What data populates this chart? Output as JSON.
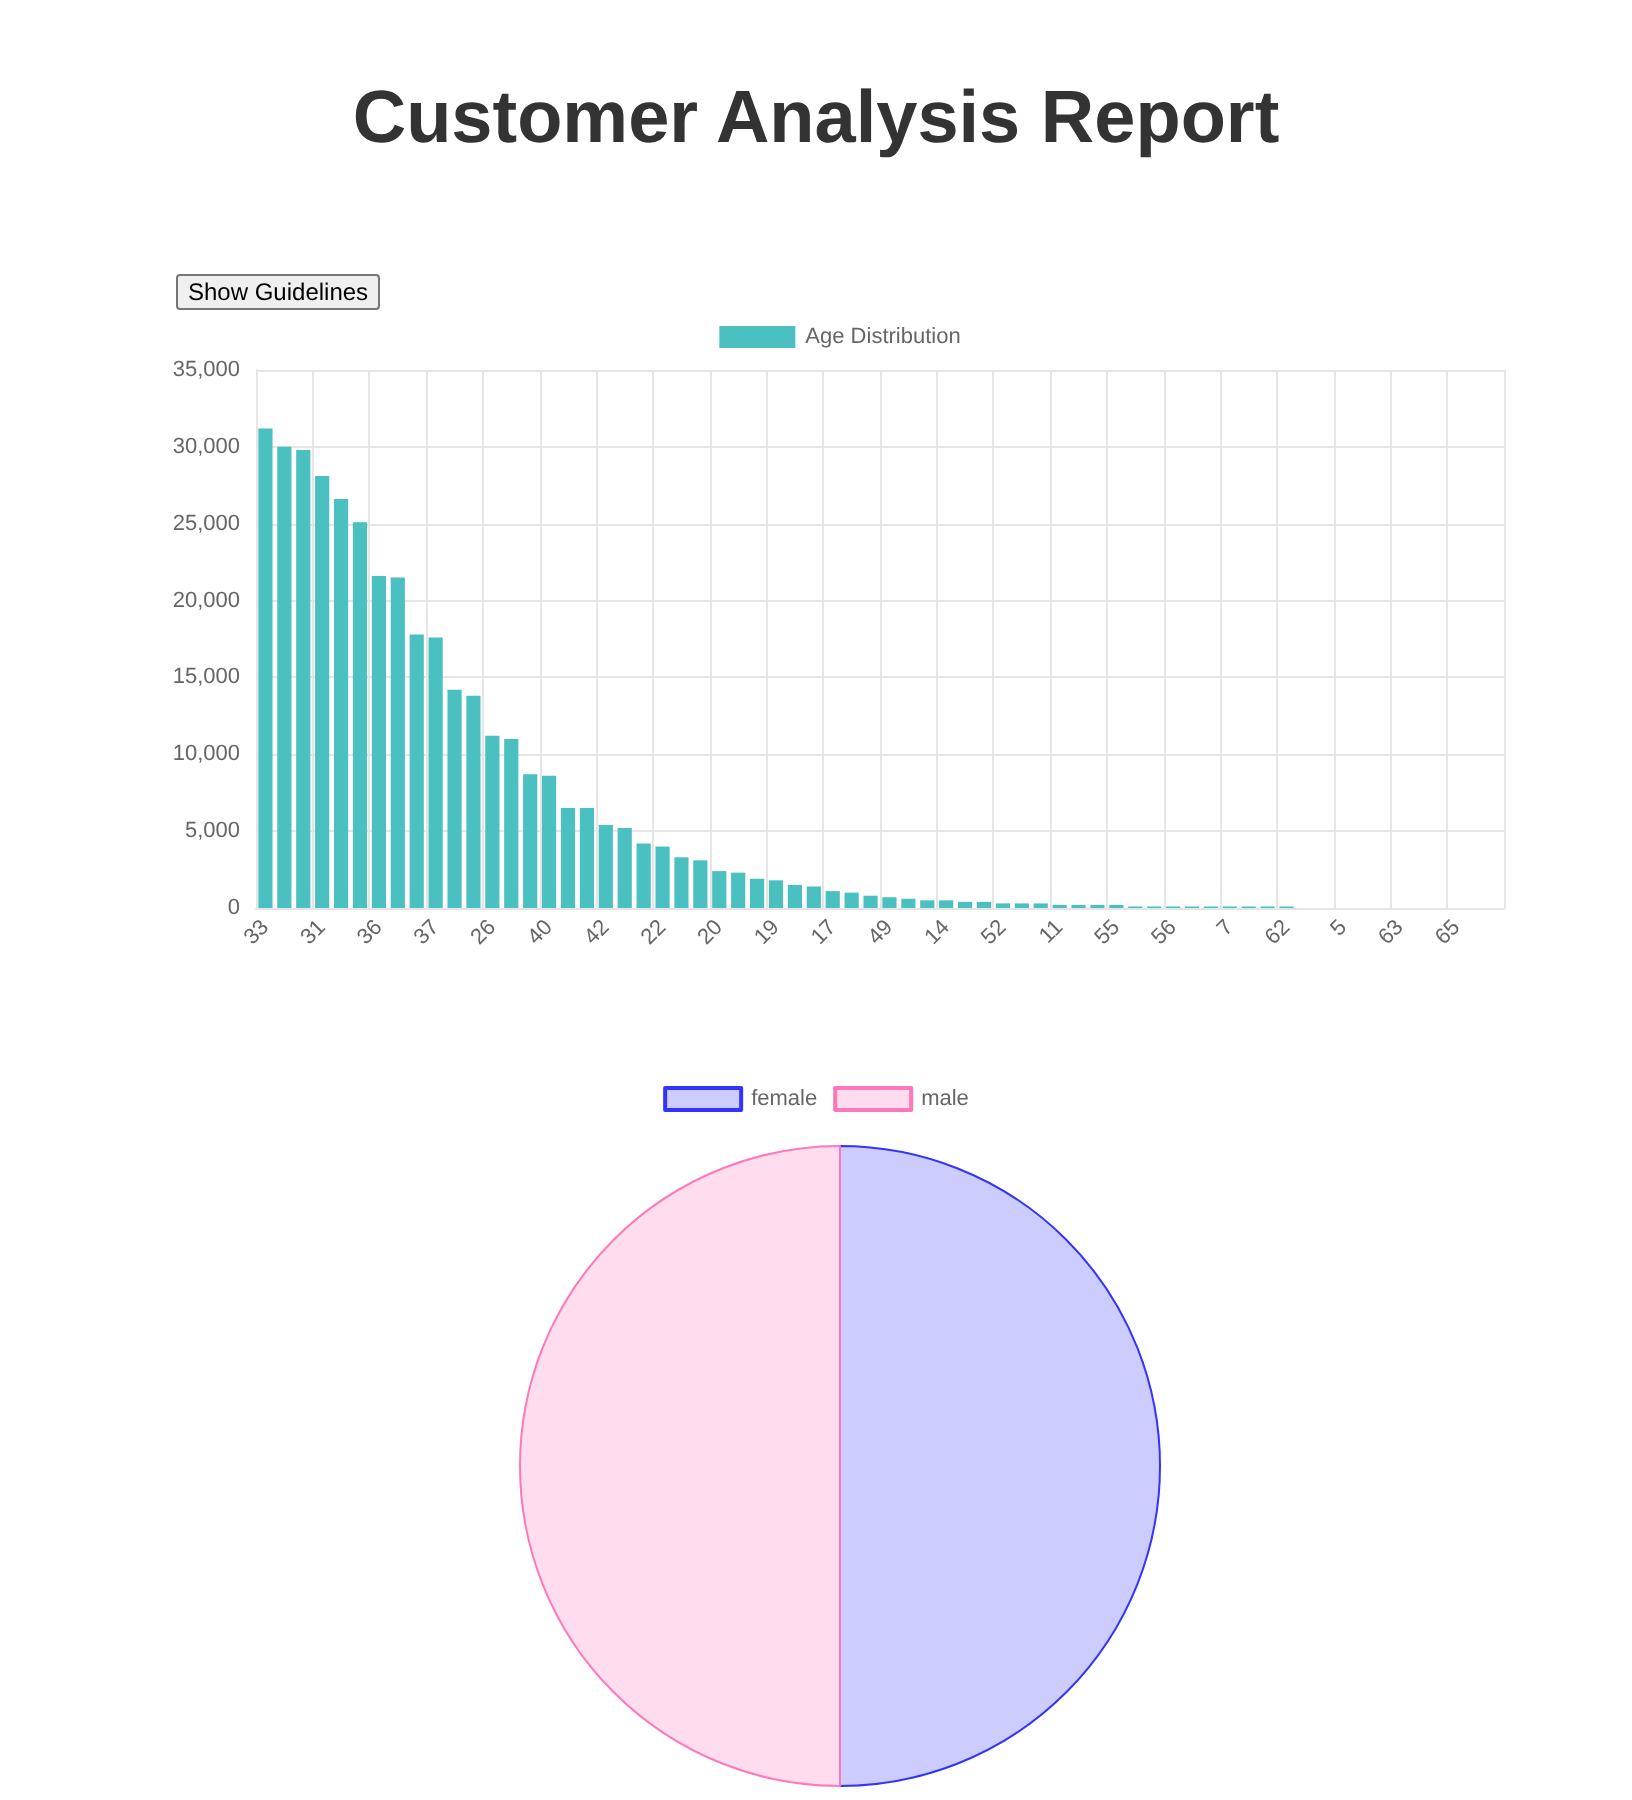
{
  "chart_data": [
    {
      "type": "bar",
      "title": "Customer Analysis Report",
      "annotations": [
        "Show Guidelines"
      ],
      "categories": [
        "33",
        null,
        null,
        "31",
        null,
        null,
        "36",
        null,
        null,
        "37",
        null,
        null,
        "26",
        null,
        null,
        "40",
        null,
        null,
        "42",
        null,
        null,
        "22",
        null,
        null,
        "20",
        null,
        null,
        "19",
        null,
        null,
        "17",
        null,
        null,
        "49",
        null,
        null,
        "14",
        null,
        null,
        "52",
        null,
        null,
        "11",
        null,
        null,
        "55",
        null,
        null,
        "56",
        null,
        null,
        "7",
        null,
        null,
        "62",
        null,
        null,
        "5",
        null,
        null,
        "63",
        null,
        null,
        "65",
        null,
        null
      ],
      "series": [
        {
          "name": "Age Distribution",
          "color": "#4bc0c0",
          "values": [
            31200,
            30000,
            29800,
            28100,
            26600,
            25100,
            21600,
            21500,
            17800,
            17600,
            14200,
            13800,
            11200,
            11000,
            8700,
            8600,
            6500,
            6500,
            5400,
            5200,
            4200,
            4000,
            3300,
            3100,
            2400,
            2300,
            1900,
            1800,
            1500,
            1400,
            1100,
            1000,
            800,
            700,
            600,
            500,
            500,
            400,
            400,
            300,
            300,
            300,
            200,
            200,
            200,
            200,
            100,
            100,
            100,
            100,
            100,
            100,
            100,
            100,
            100,
            0,
            0,
            0,
            0,
            0,
            0,
            0,
            0,
            0,
            0,
            0
          ]
        }
      ],
      "ylim": [
        0,
        35000
      ],
      "yticks": [
        0,
        {
          "value": 5000,
          "label": "5,000"
        },
        {
          "value": 10000,
          "label": "10,000"
        },
        {
          "value": 15000,
          "label": "15,000"
        },
        {
          "value": 20000,
          "label": "20,000"
        },
        {
          "value": 25000,
          "label": "25,000"
        },
        {
          "value": 30000,
          "label": "30,000"
        },
        {
          "value": 35000,
          "label": "35,000"
        }
      ],
      "grid": true,
      "legend": "top"
    },
    {
      "type": "pie",
      "categories": [
        "female",
        "male"
      ],
      "values": [
        50,
        50
      ],
      "colors": [
        "#ccccff",
        "#ffddee"
      ],
      "legend": "top"
    }
  ]
}
